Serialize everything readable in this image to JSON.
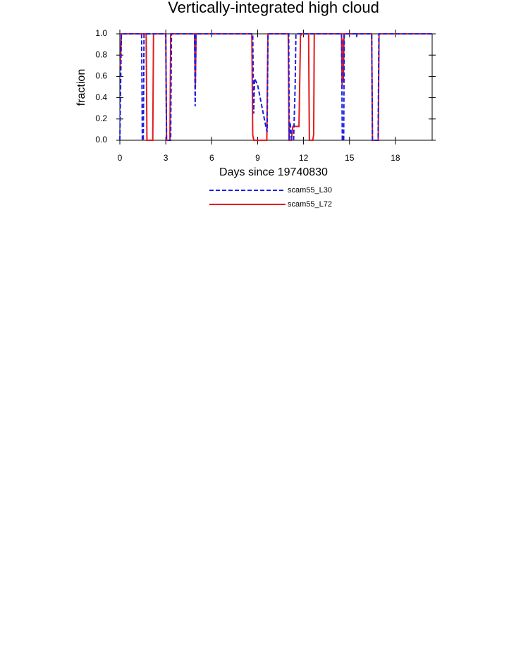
{
  "chart_data": {
    "type": "line",
    "title": "Vertically-integrated high cloud",
    "x_label": "Days since 19740830",
    "y_label": "fraction",
    "xlim": [
      0,
      20.4
    ],
    "xticks": [
      0,
      3,
      6,
      9,
      12,
      15,
      18
    ],
    "ylim": [
      0,
      1
    ],
    "yticks": [
      {
        "value": 0,
        "label": "0.0"
      },
      0.2,
      0.4,
      0.6,
      0.8,
      {
        "value": 1,
        "label": "1.0"
      }
    ],
    "grid": false,
    "legend": "bottom",
    "series": [
      {
        "name": "scam55_L30",
        "color": "#1f1fe0",
        "dashed": true,
        "x": [
          0,
          0.1,
          1.42,
          1.47,
          1.53,
          1.58,
          3.0,
          3.05,
          3.32,
          3.37,
          4.88,
          4.92,
          4.97,
          8.68,
          8.74,
          8.8,
          9.0,
          9.3,
          9.55,
          9.62,
          9.68,
          11.03,
          11.07,
          11.12,
          11.17,
          11.22,
          11.35,
          11.45,
          11.5,
          14.48,
          14.53,
          14.62,
          14.66,
          15.42,
          15.46,
          15.5,
          16.45,
          16.5,
          16.87,
          16.92,
          20.4
        ],
        "values": [
          0,
          1,
          1,
          0,
          0,
          1,
          1,
          0,
          0,
          1,
          1,
          0.32,
          1,
          1,
          0.25,
          0.58,
          0.52,
          0.3,
          0.12,
          0.08,
          1,
          1,
          0,
          0.17,
          0.1,
          0,
          0,
          0.5,
          1,
          1,
          0,
          0,
          1,
          1,
          0.97,
          1,
          1,
          0,
          0,
          1,
          1
        ]
      },
      {
        "name": "scam55_L72",
        "color": "#e41a1c",
        "dashed": false,
        "x": [
          0.03,
          0.1,
          1.72,
          1.77,
          2.15,
          2.2,
          3.0,
          3.05,
          3.27,
          3.32,
          4.88,
          4.93,
          4.98,
          8.62,
          8.68,
          8.75,
          9.6,
          9.67,
          11.0,
          11.05,
          11.2,
          11.3,
          11.7,
          11.8,
          11.87,
          12.33,
          12.38,
          12.6,
          12.66,
          12.7,
          14.48,
          14.52,
          14.56,
          14.6,
          14.64,
          16.45,
          16.5,
          16.88,
          16.93,
          20.4
        ],
        "values": [
          0.7,
          1,
          1,
          0,
          0,
          1,
          1,
          0,
          0,
          1,
          1,
          0.5,
          1,
          1,
          0.05,
          0,
          0,
          1,
          1,
          0,
          0,
          0.13,
          0.13,
          0.98,
          1,
          1,
          0,
          0,
          0.05,
          1,
          1,
          0.5,
          0.95,
          0.55,
          1,
          1,
          0,
          0,
          1,
          1
        ]
      }
    ]
  }
}
